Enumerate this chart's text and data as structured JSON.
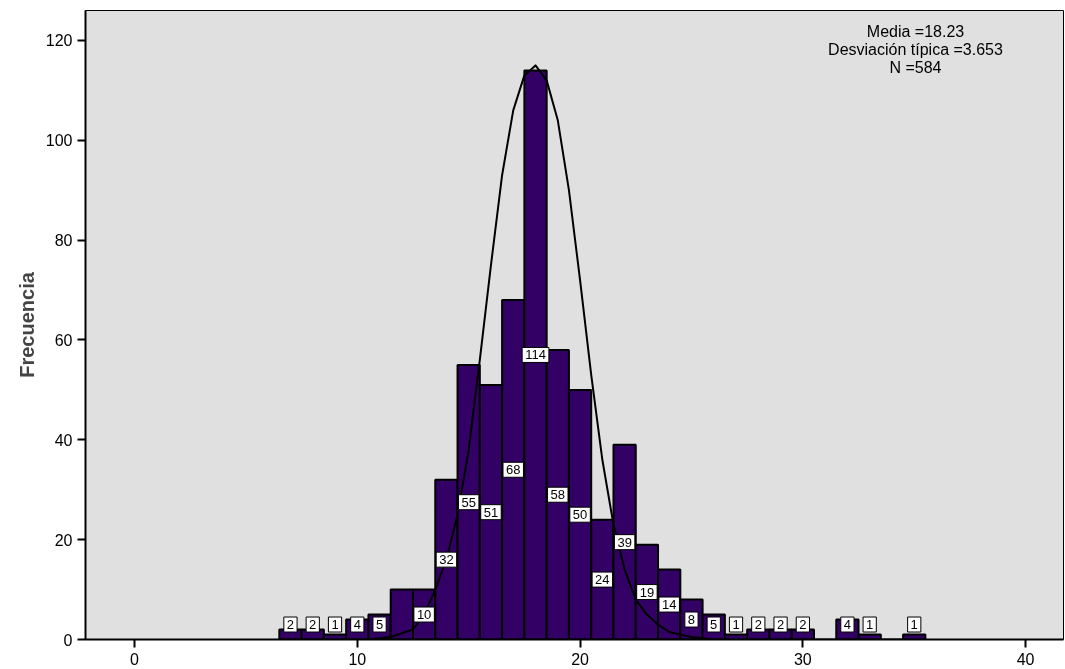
{
  "chart_data": {
    "type": "histogram",
    "ylabel": "Frecuencia",
    "bins": [
      6.5,
      7.5,
      8.5,
      9.5,
      10.5,
      11.5,
      12.5,
      13.5,
      14.5,
      15.5,
      16.5,
      17.5,
      18.5,
      19.5,
      20.5,
      21.5,
      22.5,
      23.5,
      24.5,
      25.5,
      26.5,
      27.5,
      28.5,
      29.5,
      30.5,
      31.5,
      32.5,
      33.5,
      34.5,
      35.5
    ],
    "values": [
      2,
      2,
      1,
      4,
      5,
      10,
      10,
      32,
      55,
      51,
      68,
      114,
      58,
      50,
      24,
      39,
      19,
      14,
      8,
      5,
      1,
      2,
      2,
      2,
      0,
      4,
      1,
      0,
      1
    ],
    "value_labels": [
      "2",
      "2",
      "1",
      "4",
      "5",
      null,
      "10",
      "32",
      "55",
      "51",
      "68",
      "114",
      "58",
      "50",
      "24",
      "39",
      "19",
      "14",
      "8",
      "5",
      "1",
      "2",
      "2",
      "2",
      null,
      "4",
      "1",
      null,
      "1"
    ],
    "color": "#330066",
    "series": [
      {
        "type": "line",
        "color": "#000000",
        "x": [
          10.5,
          11.5,
          12.5,
          13,
          13.5,
          14,
          14.5,
          15,
          15.5,
          16,
          16.5,
          17,
          17.5,
          18,
          18.5,
          19,
          19.5,
          20,
          20.5,
          21,
          21.5,
          22,
          22.5,
          23,
          23.5,
          24,
          25,
          26
        ],
        "values": [
          0,
          0.5,
          2,
          5,
          10,
          16,
          25,
          38,
          56,
          75,
          93,
          106,
          113,
          115,
          112,
          104,
          90,
          72,
          53,
          36,
          23,
          14,
          8,
          5,
          3,
          1.5,
          0.5,
          0
        ]
      }
    ],
    "xlim": [
      -2.2,
      41.7
    ],
    "ylim": [
      0,
      126
    ],
    "xticks": [
      0,
      10,
      20,
      30,
      40
    ],
    "yticks": [
      0,
      20,
      40,
      60,
      80,
      100,
      120
    ],
    "grid": false,
    "annotations": [
      "Media =18.23",
      "Desviación típica =3.653",
      "N =584"
    ]
  }
}
